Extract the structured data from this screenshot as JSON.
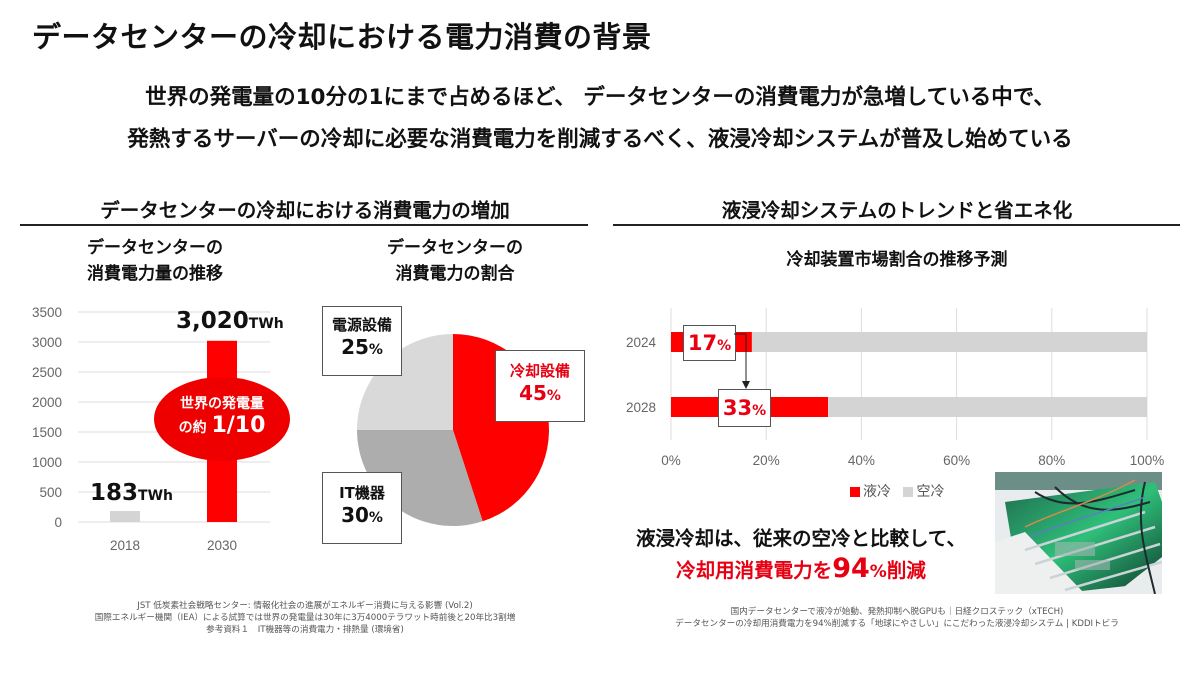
{
  "header": {
    "title": "データセンターの冷却における電力消費の背景",
    "lead_line1": "世界の発電量の10分の1にまで占めるほど、 データセンターの消費電力が急増している中で、",
    "lead_line2": "発熱するサーバーの冷却に必要な消費電力を削減するべく、液浸冷却システムが普及し始めている"
  },
  "left_section": {
    "title": "データセンターの冷却における消費電力の増加",
    "bar_subtitle_line1": "データセンターの",
    "bar_subtitle_line2": "消費電力量の推移",
    "pie_subtitle_line1": "データセンターの",
    "pie_subtitle_line2": "消費電力の割合",
    "oval_line1": "世界の発電量",
    "oval_line2_prefix": "の約",
    "oval_line2_value": "1/10",
    "sources": [
      "JST 低炭素社会戦略センター: 情報化社会の進展がエネルギー消費に与える影響 (Vol.2)",
      "国際エネルギー機関（IEA）による試算では世界の発電量は30年に3万4000テラワット時前後と20年比3割増",
      "参考資料１　IT機器等の消費電力・排熱量 (環境省)"
    ]
  },
  "right_section": {
    "title": "液浸冷却システムのトレンドと省エネ化",
    "chart_subtitle": "冷却装置市場割合の推移予測",
    "summary_line1": "液浸冷却は、従来の空冷と比較して、",
    "summary_line2_prefix": "冷却用消費電力を",
    "summary_line2_value": "94",
    "summary_line2_pct": "%",
    "summary_line2_suffix": "削減",
    "photo_alt": "liquid-immersion-cooling-photo",
    "sources": [
      "国内データセンターで液冷が始動、発熱抑制へ脱GPUも｜日経クロステック（xTECH)",
      "データセンターの冷却用消費電力を94%削減する「地球にやさしい」にこだわった液浸冷却システム | KDDIトビラ"
    ]
  },
  "colors": {
    "red": "#ff0000",
    "red_text": "#e60012",
    "light_gray": "#d4d4d4",
    "mid_gray": "#adadad",
    "pie_light": "#d9d9d9",
    "grid": "#dddddd"
  },
  "chart_data": [
    {
      "type": "bar",
      "title": "データセンターの消費電力量の推移",
      "categories": [
        "2018",
        "2030"
      ],
      "values": [
        183,
        3020
      ],
      "unit": "TWh",
      "data_labels": [
        "183",
        "3,020"
      ],
      "ylim": [
        0,
        3500
      ],
      "yticks": [
        0,
        500,
        1000,
        1500,
        2000,
        2500,
        3000,
        3500
      ],
      "ytick_labels": [
        "0",
        "500",
        "1000",
        "1500",
        "2000",
        "2500",
        "3000",
        "3500"
      ],
      "grid": true
    },
    {
      "type": "pie",
      "title": "データセンターの消費電力の割合",
      "slices": [
        {
          "label": "冷却設備",
          "value": 45,
          "display": "45",
          "pct": "%"
        },
        {
          "label": "IT機器",
          "value": 30,
          "display": "30",
          "pct": "%"
        },
        {
          "label": "電源設備",
          "value": 25,
          "display": "25",
          "pct": "%"
        }
      ]
    },
    {
      "type": "bar",
      "orientation": "horizontal",
      "stacked": true,
      "title": "冷却装置市場割合の推移予測",
      "categories": [
        "2024",
        "2028"
      ],
      "series": [
        {
          "name": "液冷",
          "values": [
            17,
            33
          ]
        },
        {
          "name": "空冷",
          "values": [
            83,
            67
          ]
        }
      ],
      "data_labels": [
        "17",
        "33"
      ],
      "pct": "%",
      "xlim": [
        0,
        100
      ],
      "xticks": [
        "0%",
        "20%",
        "40%",
        "60%",
        "80%",
        "100%"
      ],
      "legend": "bottom",
      "grid": true
    }
  ]
}
